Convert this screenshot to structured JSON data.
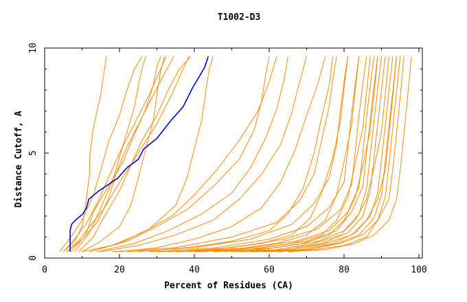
{
  "chart_data": {
    "type": "line",
    "title": "T1002-D3",
    "xlabel": "Percent of Residues (CA)",
    "ylabel": "Distance Cutoff, A",
    "xlim": [
      0,
      100
    ],
    "ylim": [
      0,
      10
    ],
    "x_ticks": [
      0,
      20,
      40,
      60,
      80,
      100
    ],
    "y_ticks": [
      0,
      5,
      10
    ],
    "grid": false,
    "legend": "none",
    "highlight_color": "#0000cc",
    "series_color": "#ff8800",
    "highlight": {
      "x": [
        6.8,
        6.8,
        7.2,
        8.2,
        10.2,
        11.2,
        11.8,
        14.5,
        17.0,
        19.5,
        22.0,
        25.0,
        26.5,
        30.0,
        33.5,
        37.0,
        39.5,
        41.5,
        42.8,
        43.7
      ],
      "y": [
        0.3,
        1.3,
        1.6,
        1.8,
        2.1,
        2.4,
        2.8,
        3.2,
        3.5,
        3.8,
        4.3,
        4.7,
        5.2,
        5.7,
        6.5,
        7.2,
        8.1,
        8.7,
        9.1,
        9.6
      ]
    },
    "series": [
      {
        "x": [
          5,
          8,
          10,
          11,
          12,
          12,
          13,
          15,
          16,
          16.5
        ],
        "y": [
          0.3,
          0.8,
          1.5,
          2.6,
          4.0,
          4.8,
          6.2,
          7.8,
          9.0,
          9.6
        ]
      },
      {
        "x": [
          4,
          7,
          10,
          13,
          15,
          17,
          20,
          22,
          24,
          26
        ],
        "y": [
          0.3,
          1.0,
          1.8,
          3.0,
          4.2,
          5.5,
          6.8,
          8.0,
          9.0,
          9.6
        ]
      },
      {
        "x": [
          5,
          8,
          11,
          14,
          17,
          20,
          24,
          28,
          31,
          32.5
        ],
        "y": [
          0.3,
          0.9,
          1.6,
          2.6,
          3.8,
          5.0,
          6.4,
          7.8,
          9.0,
          9.6
        ]
      },
      {
        "x": [
          6,
          9,
          12,
          16,
          20,
          25,
          30,
          34,
          37,
          38.5
        ],
        "y": [
          0.3,
          0.8,
          1.5,
          2.4,
          3.6,
          5.0,
          6.4,
          7.8,
          9.0,
          9.6
        ]
      },
      {
        "x": [
          6,
          10,
          14,
          17,
          19,
          22,
          26,
          30,
          33,
          34.5
        ],
        "y": [
          0.3,
          0.9,
          1.7,
          2.8,
          4.0,
          5.3,
          6.7,
          8.1,
          9.1,
          9.6
        ]
      },
      {
        "x": [
          10,
          15,
          20,
          23,
          25,
          27,
          29,
          30,
          31,
          32
        ],
        "y": [
          0.3,
          0.8,
          1.5,
          2.5,
          3.8,
          5.2,
          6.5,
          7.8,
          8.9,
          9.6
        ]
      },
      {
        "x": [
          12,
          20,
          28,
          35,
          38,
          40,
          42,
          43,
          44,
          45
        ],
        "y": [
          0.3,
          0.7,
          1.4,
          2.5,
          3.8,
          5.2,
          6.6,
          7.9,
          9.0,
          9.6
        ]
      },
      {
        "x": [
          10,
          18,
          26,
          34,
          40,
          46,
          52,
          57,
          60,
          62
        ],
        "y": [
          0.3,
          0.6,
          1.2,
          2.0,
          3.0,
          4.2,
          5.6,
          7.0,
          8.4,
          9.6
        ]
      },
      {
        "x": [
          15,
          25,
          35,
          45,
          52,
          58,
          63,
          66,
          68,
          70
        ],
        "y": [
          0.3,
          0.6,
          1.1,
          1.8,
          2.8,
          4.0,
          5.4,
          6.9,
          8.3,
          9.6
        ]
      },
      {
        "x": [
          20,
          30,
          40,
          50,
          58,
          63,
          67,
          70,
          73,
          75
        ],
        "y": [
          0.3,
          0.5,
          0.9,
          1.5,
          2.4,
          3.6,
          5.2,
          6.8,
          8.3,
          9.6
        ]
      },
      {
        "x": [
          25,
          38,
          50,
          60,
          65,
          69,
          72,
          74,
          76,
          77
        ],
        "y": [
          0.3,
          0.5,
          0.8,
          1.3,
          2.1,
          3.3,
          5.0,
          6.7,
          8.2,
          9.6
        ]
      },
      {
        "x": [
          30,
          45,
          58,
          66,
          71,
          74,
          77,
          79,
          80,
          81
        ],
        "y": [
          0.3,
          0.4,
          0.7,
          1.1,
          1.9,
          3.1,
          4.8,
          6.5,
          8.1,
          9.6
        ]
      },
      {
        "x": [
          35,
          50,
          62,
          70,
          75,
          78,
          80,
          82,
          83,
          84
        ],
        "y": [
          0.3,
          0.4,
          0.7,
          1.1,
          1.8,
          3.0,
          4.6,
          6.3,
          8.0,
          9.6
        ]
      },
      {
        "x": [
          40,
          55,
          66,
          74,
          78,
          81,
          83,
          85,
          86,
          87
        ],
        "y": [
          0.3,
          0.4,
          0.7,
          1.1,
          1.8,
          2.9,
          4.5,
          6.2,
          7.9,
          9.6
        ]
      },
      {
        "x": [
          45,
          58,
          69,
          76,
          80,
          83,
          85,
          87,
          88,
          89
        ],
        "y": [
          0.3,
          0.4,
          0.7,
          1.1,
          1.8,
          2.9,
          4.4,
          6.1,
          7.8,
          9.6
        ]
      },
      {
        "x": [
          50,
          62,
          72,
          79,
          83,
          86,
          88,
          90,
          91,
          92
        ],
        "y": [
          0.3,
          0.4,
          0.7,
          1.1,
          1.8,
          2.8,
          4.3,
          6.0,
          7.8,
          9.6
        ]
      },
      {
        "x": [
          55,
          66,
          75,
          82,
          86,
          89,
          91,
          92,
          93,
          94
        ],
        "y": [
          0.3,
          0.4,
          0.7,
          1.1,
          1.8,
          2.8,
          4.2,
          5.9,
          7.7,
          9.6
        ]
      },
      {
        "x": [
          60,
          70,
          79,
          85,
          89,
          92,
          93,
          94,
          95,
          96
        ],
        "y": [
          0.3,
          0.4,
          0.7,
          1.1,
          1.8,
          2.8,
          4.2,
          5.9,
          7.7,
          9.6
        ]
      },
      {
        "x": [
          65,
          75,
          83,
          88,
          92,
          94,
          95,
          96,
          97,
          98
        ],
        "y": [
          0.3,
          0.4,
          0.7,
          1.1,
          1.8,
          2.8,
          4.2,
          5.9,
          7.7,
          9.6
        ]
      },
      {
        "x": [
          48,
          62,
          73,
          80,
          84,
          86,
          87,
          88,
          89,
          90
        ],
        "y": [
          0.3,
          0.5,
          0.8,
          1.3,
          2.1,
          3.3,
          4.9,
          6.5,
          8.1,
          9.6
        ]
      },
      {
        "x": [
          52,
          64,
          74,
          81,
          85,
          87,
          88,
          89,
          90,
          91
        ],
        "y": [
          0.3,
          0.4,
          0.7,
          1.2,
          2.0,
          3.2,
          4.8,
          6.4,
          8.0,
          9.6
        ]
      },
      {
        "x": [
          56,
          68,
          77,
          83,
          87,
          89,
          90,
          91,
          92,
          93
        ],
        "y": [
          0.3,
          0.4,
          0.7,
          1.2,
          2.0,
          3.1,
          4.7,
          6.3,
          8.0,
          9.6
        ]
      },
      {
        "x": [
          58,
          70,
          78,
          84,
          88,
          90,
          91,
          92,
          93,
          94
        ],
        "y": [
          0.3,
          0.4,
          0.7,
          1.1,
          1.9,
          3.0,
          4.6,
          6.3,
          7.9,
          9.6
        ]
      },
      {
        "x": [
          62,
          72,
          80,
          86,
          89,
          91,
          92,
          93,
          94,
          95
        ],
        "y": [
          0.3,
          0.4,
          0.6,
          1.0,
          1.8,
          2.9,
          4.5,
          6.2,
          7.9,
          9.6
        ]
      },
      {
        "x": [
          42,
          58,
          70,
          78,
          82,
          85,
          86,
          87,
          88,
          89
        ],
        "y": [
          0.3,
          0.5,
          0.8,
          1.3,
          2.2,
          3.4,
          5.0,
          6.6,
          8.2,
          9.6
        ]
      },
      {
        "x": [
          38,
          55,
          67,
          76,
          81,
          84,
          85,
          86,
          87,
          88
        ],
        "y": [
          0.3,
          0.5,
          0.8,
          1.3,
          2.2,
          3.4,
          5.0,
          6.7,
          8.2,
          9.6
        ]
      },
      {
        "x": [
          33,
          50,
          64,
          73,
          79,
          82,
          83,
          84,
          85,
          86
        ],
        "y": [
          0.3,
          0.5,
          0.9,
          1.4,
          2.3,
          3.5,
          5.1,
          6.8,
          8.3,
          9.6
        ]
      },
      {
        "x": [
          28,
          46,
          60,
          70,
          76,
          80,
          81,
          82,
          83,
          84
        ],
        "y": [
          0.3,
          0.5,
          0.9,
          1.5,
          2.4,
          3.6,
          5.2,
          6.9,
          8.3,
          9.6
        ]
      },
      {
        "x": [
          22,
          40,
          55,
          66,
          72,
          76,
          78,
          79,
          80,
          81
        ],
        "y": [
          0.3,
          0.5,
          0.9,
          1.6,
          2.6,
          3.8,
          5.4,
          7.0,
          8.4,
          9.6
        ]
      },
      {
        "x": [
          18,
          35,
          50,
          62,
          68,
          72,
          74,
          76,
          77,
          78
        ],
        "y": [
          0.3,
          0.5,
          1.0,
          1.7,
          2.7,
          4.0,
          5.6,
          7.2,
          8.5,
          9.6
        ]
      },
      {
        "x": [
          8,
          12,
          15,
          18,
          20,
          22,
          24,
          25,
          26,
          27
        ],
        "y": [
          0.3,
          1.2,
          2.4,
          3.6,
          4.8,
          6.0,
          7.2,
          8.2,
          9.0,
          9.6
        ]
      },
      {
        "x": [
          9,
          13,
          16,
          20,
          23,
          26,
          30,
          33,
          36,
          39
        ],
        "y": [
          0.3,
          1.0,
          2.0,
          3.2,
          4.4,
          5.6,
          6.8,
          8.0,
          9.0,
          9.6
        ]
      },
      {
        "x": [
          7,
          11,
          13,
          17,
          21,
          24,
          27,
          29,
          30,
          31
        ],
        "y": [
          0.3,
          1.1,
          2.2,
          3.4,
          4.6,
          5.9,
          7.1,
          8.2,
          9.1,
          9.6
        ]
      },
      {
        "x": [
          12,
          22,
          30,
          38,
          45,
          52,
          56,
          58,
          59,
          60
        ],
        "y": [
          0.3,
          0.8,
          1.5,
          2.3,
          3.4,
          4.7,
          6.1,
          7.5,
          8.7,
          9.6
        ]
      },
      {
        "x": [
          14,
          24,
          33,
          42,
          50,
          55,
          59,
          62,
          64,
          65
        ],
        "y": [
          0.3,
          0.7,
          1.3,
          2.1,
          3.1,
          4.3,
          5.7,
          7.1,
          8.5,
          9.6
        ]
      }
    ]
  }
}
